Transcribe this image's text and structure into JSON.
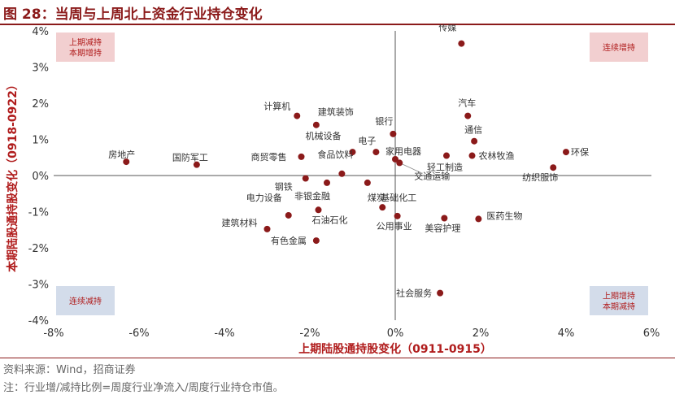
{
  "title": "图 28：当周与上周北上资金行业持仓变化",
  "chart_data": {
    "type": "scatter",
    "xlabel": "上期陆股通持股变化（0911-0915）",
    "ylabel": "本期陆股通持股变化（0918-0922）",
    "xlim": [
      -8,
      6
    ],
    "ylim": [
      -4,
      4
    ],
    "x_ticks": [
      "-8%",
      "-6%",
      "-4%",
      "-2%",
      "0%",
      "2%",
      "4%",
      "6%"
    ],
    "y_ticks": [
      "4%",
      "3%",
      "2%",
      "1%",
      "0%",
      "-1%",
      "-2%",
      "-3%",
      "-4%"
    ],
    "points": [
      {
        "label": "传媒",
        "x": 1.55,
        "y": 3.65
      },
      {
        "label": "计算机",
        "x": -2.3,
        "y": 1.65
      },
      {
        "label": "建筑装饰",
        "x": -1.85,
        "y": 1.4
      },
      {
        "label": "汽车",
        "x": 1.7,
        "y": 1.65
      },
      {
        "label": "银行",
        "x": -0.05,
        "y": 1.15
      },
      {
        "label": "通信",
        "x": 1.85,
        "y": 0.95
      },
      {
        "label": "电子",
        "x": -0.45,
        "y": 0.65
      },
      {
        "label": "机械设备",
        "x": -1.0,
        "y": 0.65
      },
      {
        "label": "农林牧渔",
        "x": 1.8,
        "y": 0.55
      },
      {
        "label": "环保",
        "x": 4.0,
        "y": 0.65
      },
      {
        "label": "房地产",
        "x": -6.3,
        "y": 0.38
      },
      {
        "label": "国防军工",
        "x": -4.65,
        "y": 0.3
      },
      {
        "label": "商贸零售",
        "x": -2.2,
        "y": 0.52
      },
      {
        "label": "家用电器",
        "x": 0.0,
        "y": 0.45
      },
      {
        "label": "轻工制造",
        "x": 1.2,
        "y": 0.55
      },
      {
        "label": "纺织服饰",
        "x": 3.7,
        "y": 0.22
      },
      {
        "label": "食品饮料",
        "x": -1.25,
        "y": 0.05
      },
      {
        "label": "交通运输",
        "x": 0.1,
        "y": 0.35
      },
      {
        "label": "钢铁",
        "x": -2.1,
        "y": -0.08
      },
      {
        "label": "非银金融",
        "x": -1.6,
        "y": -0.2
      },
      {
        "label": "煤炭",
        "x": -0.65,
        "y": -0.2
      },
      {
        "label": "建筑材料",
        "x": -3.0,
        "y": -1.48
      },
      {
        "label": "电力设备",
        "x": -2.5,
        "y": -1.1
      },
      {
        "label": "石油石化",
        "x": -1.8,
        "y": -0.95
      },
      {
        "label": "基础化工",
        "x": -0.3,
        "y": -0.88
      },
      {
        "label": "公用事业",
        "x": 0.05,
        "y": -1.12
      },
      {
        "label": "美容护理",
        "x": 1.15,
        "y": -1.18
      },
      {
        "label": "医药生物",
        "x": 1.95,
        "y": -1.2
      },
      {
        "label": "有色金属",
        "x": -1.85,
        "y": -1.8
      },
      {
        "label": "社会服务",
        "x": 1.05,
        "y": -3.25
      }
    ],
    "quadrant_boxes": [
      {
        "label_lines": [
          "上期减持",
          "本期增持"
        ],
        "color": "#f2cfd0",
        "corner": "top-left"
      },
      {
        "label_lines": [
          "连续增持"
        ],
        "color": "#f2cfd0",
        "corner": "top-right"
      },
      {
        "label_lines": [
          "连续减持"
        ],
        "color": "#d3dcea",
        "corner": "bottom-left"
      },
      {
        "label_lines": [
          "上期增持",
          "本期减持"
        ],
        "color": "#d3dcea",
        "corner": "bottom-right"
      }
    ],
    "colors": {
      "marker": "#8b1a1a",
      "axis_label": "#b01c1c",
      "text": "#333333",
      "quadrant_text": "#b01c1c"
    },
    "grid": false,
    "legend": "none"
  },
  "source": "资料来源：Wind，招商证券",
  "note": "注：行业增/减持比例=周度行业净流入/周度行业持仓市值。"
}
